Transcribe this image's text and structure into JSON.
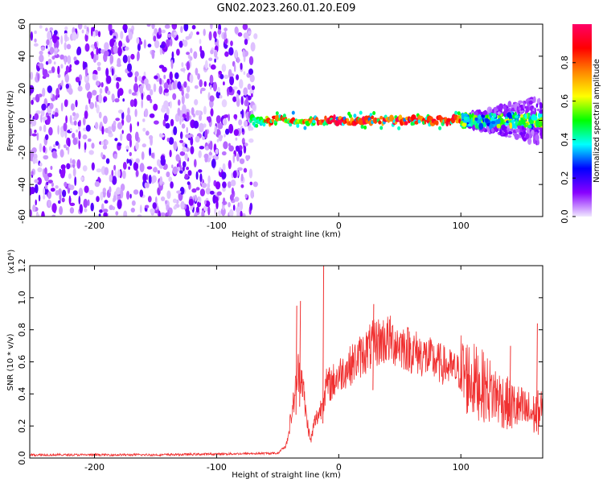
{
  "chart_data": [
    {
      "type": "heatmap",
      "title": "GN02.2023.260.01.20.E09",
      "xlabel": "Height of straight line (km)",
      "ylabel": "Frequency (Hz)",
      "xlim": [
        -253,
        167
      ],
      "ylim": [
        -60,
        60
      ],
      "x_ticks": [
        -200,
        -100,
        0,
        100
      ],
      "y_ticks": [
        -60,
        -40,
        -20,
        0,
        20,
        40,
        60
      ],
      "colorbar": {
        "label": "Normalized spectral amplitude",
        "range": [
          0,
          1
        ],
        "ticks": [
          "0.0",
          "0.2",
          "0.4",
          "0.6",
          "0.8"
        ],
        "colors": [
          "#f0e8ff",
          "#8800ff",
          "#0000ff",
          "#00ffff",
          "#00ff00",
          "#ffff00",
          "#ff8800",
          "#ff0000",
          "#ff0066"
        ]
      },
      "regions": [
        {
          "x_range": [
            -253,
            -72
          ],
          "freq_range": [
            -60,
            60
          ],
          "amplitude": 0.05,
          "pattern": "broadband noise"
        },
        {
          "x_range": [
            -72,
            100
          ],
          "freq_range": [
            -3,
            3
          ],
          "amplitude": 0.9,
          "pattern": "narrow band at 0 Hz"
        },
        {
          "x_range": [
            100,
            167
          ],
          "freq_range": [
            -15,
            15
          ],
          "amplitude": 0.3,
          "pattern": "widening band"
        }
      ]
    },
    {
      "type": "line",
      "xlabel": "Height of straight line (km)",
      "ylabel": "SNR (10 * v/v)",
      "y_multiplier": "(x10⁴)",
      "xlim": [
        -253,
        167
      ],
      "ylim": [
        0,
        1.2
      ],
      "x_ticks": [
        -200,
        -100,
        0,
        100
      ],
      "y_ticks": [
        "0.0",
        "0.2",
        "0.4",
        "0.6",
        "0.8",
        "1.0",
        "1.2"
      ],
      "color": "#f03030",
      "envelope": [
        {
          "x": -253,
          "y": 0.02
        },
        {
          "x": -150,
          "y": 0.02
        },
        {
          "x": -50,
          "y": 0.03
        },
        {
          "x": -43,
          "y": 0.08
        },
        {
          "x": -38,
          "y": 0.3
        },
        {
          "x": -33,
          "y": 0.55
        },
        {
          "x": -30,
          "y": 0.5
        },
        {
          "x": -27,
          "y": 0.28
        },
        {
          "x": -23,
          "y": 0.1
        },
        {
          "x": -20,
          "y": 0.22
        },
        {
          "x": -15,
          "y": 0.3
        },
        {
          "x": -10,
          "y": 0.45
        },
        {
          "x": -5,
          "y": 0.47
        },
        {
          "x": 0,
          "y": 0.52
        },
        {
          "x": 10,
          "y": 0.58
        },
        {
          "x": 20,
          "y": 0.65
        },
        {
          "x": 30,
          "y": 0.72
        },
        {
          "x": 40,
          "y": 0.74
        },
        {
          "x": 50,
          "y": 0.71
        },
        {
          "x": 60,
          "y": 0.67
        },
        {
          "x": 80,
          "y": 0.6
        },
        {
          "x": 100,
          "y": 0.53
        },
        {
          "x": 120,
          "y": 0.44
        },
        {
          "x": 140,
          "y": 0.33
        },
        {
          "x": 160,
          "y": 0.27
        },
        {
          "x": 167,
          "y": 0.3
        }
      ],
      "spikes": [
        {
          "x": -35,
          "y": 0.95
        },
        {
          "x": -32,
          "y": 0.98
        },
        {
          "x": -13,
          "y": 1.2
        },
        {
          "x": 28,
          "y": 0.96
        },
        {
          "x": 140,
          "y": 0.7
        },
        {
          "x": 162,
          "y": 0.84
        }
      ]
    }
  ]
}
